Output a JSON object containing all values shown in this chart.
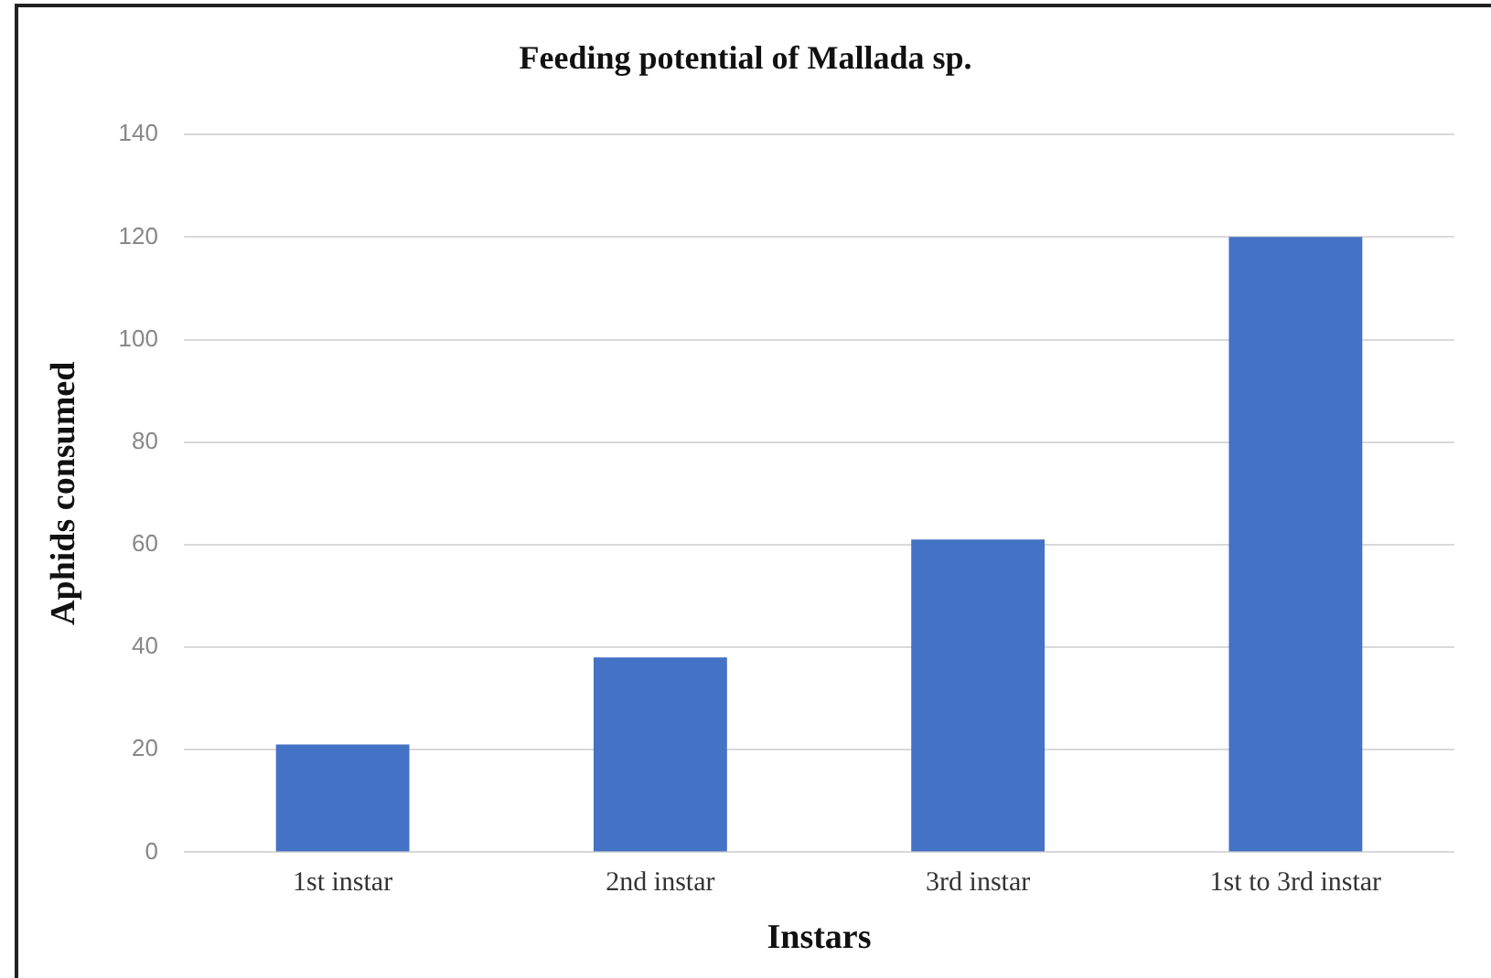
{
  "chart_data": {
    "type": "bar",
    "title": "Feeding potential of Mallada sp.",
    "xlabel": "Instars",
    "ylabel": "Aphids consumed",
    "categories": [
      "1st instar",
      "2nd instar",
      "3rd instar",
      "1st to 3rd instar"
    ],
    "values": [
      21,
      38,
      61,
      120
    ],
    "color": "#4472c4",
    "ylim": [
      0,
      140
    ],
    "yticks": [
      0,
      20,
      40,
      60,
      80,
      100,
      120,
      140
    ],
    "grid": "y",
    "legend": false
  }
}
